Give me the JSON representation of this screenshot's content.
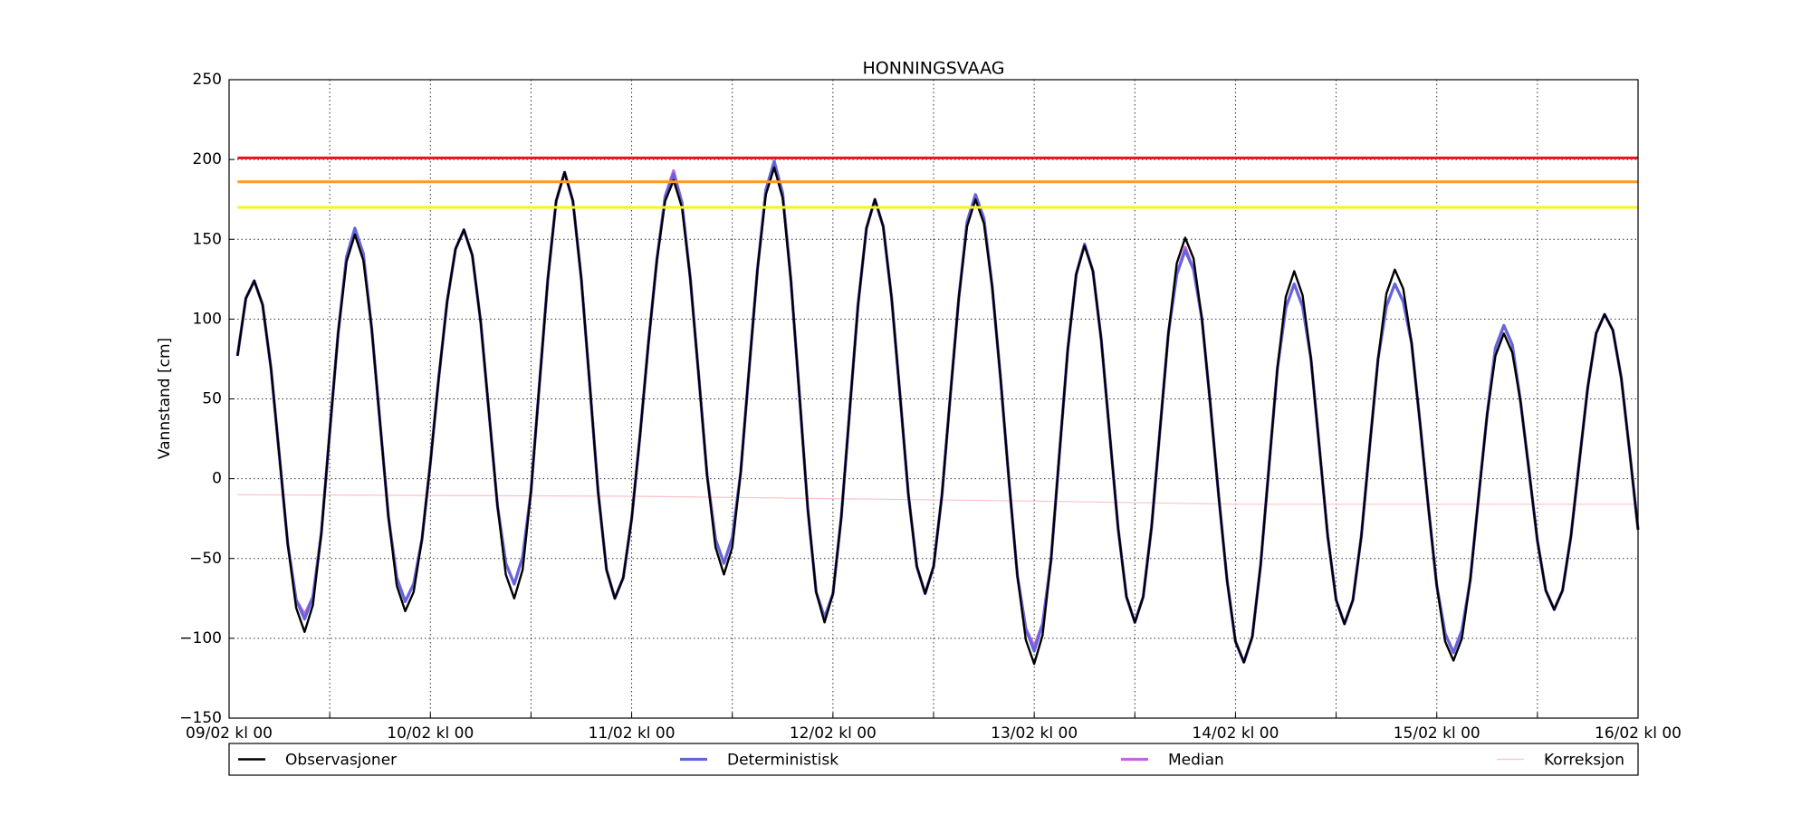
{
  "chart_data": {
    "type": "line",
    "title": "HONNINGSVAAG",
    "y_label": "Vannstand [cm]",
    "xlim": [
      0,
      168
    ],
    "xticks": [
      {
        "value": 0,
        "label": "09/02 kl 00"
      },
      {
        "value": 24,
        "label": "10/02 kl 00"
      },
      {
        "value": 48,
        "label": "11/02 kl 00"
      },
      {
        "value": 72,
        "label": "12/02 kl 00"
      },
      {
        "value": 96,
        "label": "13/02 kl 00"
      },
      {
        "value": 120,
        "label": "14/02 kl 00"
      },
      {
        "value": 144,
        "label": "15/02 kl 00"
      },
      {
        "value": 168,
        "label": "16/02 kl 00"
      }
    ],
    "minor_xticks": [
      12,
      36,
      60,
      84,
      108,
      132,
      156
    ],
    "ylim": [
      -150,
      250
    ],
    "yticks": [
      {
        "value": -150,
        "label": "−150"
      },
      {
        "value": -100,
        "label": "−100"
      },
      {
        "value": -50,
        "label": "−50"
      },
      0,
      50,
      100,
      150,
      200,
      250
    ],
    "grid": true,
    "thresholds": [
      {
        "value": 201,
        "color": "#e8141c"
      },
      {
        "value": 186,
        "color": "#ff9a1a"
      },
      {
        "value": 170,
        "color": "#f5f51a"
      }
    ],
    "x": [
      1,
      2,
      3,
      4,
      5,
      6,
      7,
      8,
      9,
      10,
      11,
      12,
      13,
      14,
      15,
      16,
      17,
      18,
      19,
      20,
      21,
      22,
      23,
      24,
      25,
      26,
      27,
      28,
      29,
      30,
      31,
      32,
      33,
      34,
      35,
      36,
      37,
      38,
      39,
      40,
      41,
      42,
      43,
      44,
      45,
      46,
      47,
      48,
      49,
      50,
      51,
      52,
      53,
      54,
      55,
      56,
      57,
      58,
      59,
      60,
      61,
      62,
      63,
      64,
      65,
      66,
      67,
      68,
      69,
      70,
      71,
      72,
      73,
      74,
      75,
      76,
      77,
      78,
      79,
      80,
      81,
      82,
      83,
      84,
      85,
      86,
      87,
      88,
      89,
      90,
      91,
      92,
      93,
      94,
      95,
      96,
      97,
      98,
      99,
      100,
      101,
      102,
      103,
      104,
      105,
      106,
      107,
      108,
      109,
      110,
      111,
      112,
      113,
      114,
      115,
      116,
      117,
      118,
      119,
      120,
      121,
      122,
      123,
      124,
      125,
      126,
      127,
      128,
      129,
      130,
      131,
      132,
      133,
      134,
      135,
      136,
      137,
      138,
      139,
      140,
      141,
      142,
      143,
      144,
      145,
      146,
      147,
      148,
      149,
      150,
      151,
      152,
      153,
      154,
      155,
      156,
      157,
      158,
      159,
      160,
      161,
      162,
      163,
      164,
      165,
      166,
      167,
      168
    ],
    "series": [
      {
        "name": "Observasjoner",
        "color": "#000000",
        "width": 2.4,
        "values": [
          77,
          113,
          124,
          109,
          69,
          14,
          -41,
          -81,
          -96,
          -79,
          -34,
          29,
          91,
          136,
          153,
          137,
          94,
          35,
          -24,
          -67,
          -83,
          -71,
          -38,
          10,
          63,
          111,
          144,
          156,
          140,
          98,
          41,
          -17,
          -60,
          -75,
          -57,
          -8,
          59,
          125,
          174,
          192,
          174,
          125,
          59,
          -8,
          -57,
          -75,
          -62,
          -25,
          27,
          85,
          137,
          174,
          187,
          170,
          125,
          64,
          2,
          -43,
          -60,
          -43,
          4,
          68,
          131,
          178,
          195,
          176,
          124,
          53,
          -19,
          -71,
          -90,
          -72,
          -24,
          43,
          109,
          157,
          175,
          158,
          113,
          52,
          -10,
          -55,
          -72,
          -55,
          -10,
          52,
          113,
          158,
          175,
          160,
          120,
          62,
          -2,
          -61,
          -101,
          -116,
          -98,
          -51,
          15,
          81,
          128,
          146,
          130,
          87,
          28,
          -31,
          -74,
          -90,
          -74,
          -30,
          31,
          91,
          135,
          151,
          138,
          100,
          47,
          -11,
          -64,
          -102,
          -115,
          -99,
          -54,
          8,
          69,
          114,
          130,
          115,
          75,
          20,
          -36,
          -76,
          -91,
          -76,
          -36,
          20,
          75,
          116,
          131,
          119,
          85,
          35,
          -18,
          -67,
          -102,
          -114,
          -100,
          -63,
          -11,
          40,
          77,
          91,
          79,
          48,
          5,
          -39,
          -70,
          -82,
          -70,
          -36,
          11,
          57,
          91,
          103,
          93,
          63,
          17,
          -32
        ]
      },
      {
        "name": "Deterministisk",
        "color": "#6464dc",
        "width": 3.2,
        "values": [
          77,
          113,
          124,
          109,
          69,
          14,
          -41,
          -76,
          -88,
          -74,
          -34,
          29,
          91,
          139,
          157,
          141,
          94,
          35,
          -24,
          -62,
          -77,
          -66,
          -38,
          10,
          63,
          111,
          144,
          156,
          140,
          98,
          41,
          -17,
          -53,
          -66,
          -49,
          -8,
          59,
          125,
          174,
          192,
          174,
          125,
          59,
          -8,
          -57,
          -75,
          -62,
          -25,
          27,
          85,
          137,
          177,
          191,
          173,
          125,
          64,
          2,
          -38,
          -53,
          -37,
          4,
          68,
          131,
          181,
          199,
          179,
          124,
          53,
          -19,
          -71,
          -87,
          -72,
          -24,
          43,
          109,
          157,
          175,
          158,
          113,
          52,
          -10,
          -55,
          -72,
          -55,
          -10,
          52,
          113,
          161,
          178,
          163,
          120,
          62,
          -2,
          -61,
          -94,
          -108,
          -91,
          -51,
          15,
          81,
          128,
          147,
          130,
          87,
          28,
          -31,
          -74,
          -90,
          -74,
          -30,
          31,
          91,
          128,
          143,
          131,
          100,
          47,
          -11,
          -64,
          -102,
          -115,
          -99,
          -54,
          8,
          69,
          107,
          122,
          108,
          75,
          20,
          -36,
          -76,
          -91,
          -76,
          -36,
          20,
          75,
          108,
          122,
          111,
          85,
          35,
          -18,
          -67,
          -97,
          -109,
          -95,
          -63,
          -11,
          40,
          82,
          96,
          84,
          48,
          5,
          -39,
          -70,
          -82,
          -70,
          -36,
          11,
          57,
          91,
          103,
          93,
          63,
          17,
          -32
        ]
      },
      {
        "name": "Median",
        "color": "#c864dc",
        "width": 3.2,
        "values": [
          77,
          113,
          124,
          109,
          69,
          14,
          -41,
          -76,
          -85,
          -74,
          -34,
          29,
          91,
          139,
          155,
          141,
          94,
          35,
          -24,
          -62,
          -77,
          -66,
          -38,
          10,
          63,
          111,
          144,
          156,
          140,
          98,
          41,
          -17,
          -53,
          -66,
          -49,
          -8,
          59,
          125,
          174,
          192,
          174,
          125,
          59,
          -8,
          -57,
          -75,
          -62,
          -25,
          27,
          85,
          137,
          177,
          193,
          173,
          125,
          64,
          2,
          -38,
          -53,
          -37,
          4,
          68,
          131,
          181,
          197,
          179,
          124,
          53,
          -19,
          -71,
          -87,
          -72,
          -24,
          43,
          109,
          157,
          175,
          158,
          113,
          52,
          -10,
          -55,
          -72,
          -55,
          -10,
          52,
          113,
          161,
          178,
          163,
          120,
          62,
          -2,
          -61,
          -94,
          -105,
          -91,
          -51,
          15,
          81,
          128,
          147,
          130,
          87,
          28,
          -31,
          -74,
          -90,
          -74,
          -30,
          31,
          91,
          128,
          145,
          131,
          100,
          47,
          -11,
          -64,
          -102,
          -115,
          -99,
          -54,
          8,
          69,
          107,
          122,
          108,
          75,
          20,
          -36,
          -76,
          -91,
          -76,
          -36,
          20,
          75,
          108,
          122,
          111,
          85,
          35,
          -18,
          -67,
          -97,
          -109,
          -95,
          -63,
          -11,
          40,
          82,
          96,
          84,
          48,
          5,
          -39,
          -70,
          -82,
          -70,
          -36,
          11,
          57,
          91,
          103,
          93,
          63,
          17,
          -32
        ]
      },
      {
        "name": "Korreksjon",
        "color": "#ffc0cb",
        "width": 1.2,
        "x": [
          1,
          48,
          96,
          120,
          168
        ],
        "values": [
          -10,
          -11,
          -14,
          -16,
          -16
        ]
      }
    ]
  }
}
